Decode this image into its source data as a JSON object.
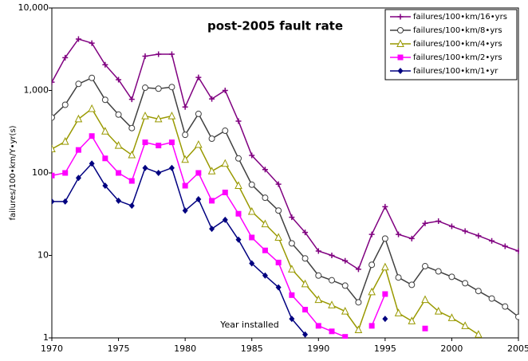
{
  "chart_data": {
    "type": "line",
    "title": "post-2005 fault rate",
    "y_label": "failures/100•km/Y•yr(s)",
    "annotation": "Year installed",
    "yscale": "log",
    "grid": false,
    "legend_position": "top-right",
    "x": [
      1970,
      1971,
      1972,
      1973,
      1974,
      1975,
      1976,
      1977,
      1978,
      1979,
      1980,
      1981,
      1982,
      1983,
      1984,
      1985,
      1986,
      1987,
      1988,
      1989,
      1990,
      1991,
      1992,
      1993,
      1994,
      1995,
      1996,
      1997,
      1998,
      1999,
      2000,
      2001,
      2002,
      2003,
      2004,
      2005
    ],
    "xlim": [
      1970,
      2005
    ],
    "xticks": [
      1970,
      1975,
      1980,
      1985,
      1990,
      1995,
      2000,
      2005
    ],
    "ylim": [
      1,
      10000
    ],
    "yticks": [
      1,
      10,
      100,
      {
        "value": 1000,
        "label": "1,000"
      },
      {
        "value": 10000,
        "label": "10,000"
      }
    ],
    "series": [
      {
        "name": "failures/100•km/16•yrs",
        "color": "#800080",
        "marker": "plus",
        "values": [
          1260,
          2500,
          4200,
          3750,
          2050,
          1350,
          780,
          2600,
          2750,
          2750,
          630,
          1440,
          790,
          1000,
          425,
          163,
          110,
          73,
          29,
          19,
          11.3,
          10,
          8.6,
          6.8,
          18,
          39,
          18,
          16,
          24.5,
          26,
          22.5,
          19.7,
          17.3,
          15,
          12.9,
          11.3
        ]
      },
      {
        "name": "failures/100•km/8•yrs",
        "color": "#404040",
        "marker": "circle",
        "values": [
          470,
          670,
          1200,
          1420,
          770,
          510,
          350,
          1080,
          1050,
          1100,
          290,
          520,
          260,
          325,
          150,
          72,
          50,
          35,
          14,
          9.2,
          5.7,
          5.0,
          4.3,
          2.7,
          7.7,
          16,
          5.4,
          4.4,
          7.4,
          6.4,
          5.5,
          4.6,
          3.7,
          3.0,
          2.4,
          1.8
        ]
      },
      {
        "name": "failures/100•km/4•yrs",
        "color": "#999900",
        "marker": "triangle",
        "values": [
          195,
          240,
          450,
          600,
          320,
          215,
          165,
          490,
          450,
          490,
          145,
          220,
          105,
          130,
          70,
          34,
          24,
          16.5,
          6.8,
          4.5,
          2.9,
          2.5,
          2.1,
          1.25,
          3.6,
          7.2,
          2.0,
          1.6,
          2.9,
          2.1,
          1.75,
          1.4,
          1.1,
          null,
          null,
          null
        ]
      },
      {
        "name": "failures/100•km/2•yrs",
        "color": "#ff00ff",
        "marker": "square",
        "values": [
          93,
          100,
          190,
          280,
          150,
          100,
          80,
          235,
          215,
          235,
          70,
          100,
          46,
          58,
          32,
          16.5,
          11.5,
          8.2,
          3.3,
          2.2,
          1.4,
          1.2,
          1.03,
          null,
          1.4,
          3.4,
          null,
          null,
          1.3,
          null,
          null,
          null,
          null,
          null,
          null,
          null
        ]
      },
      {
        "name": "failures/100•km/1•yr",
        "color": "#000080",
        "marker": "diamond",
        "values": [
          45,
          45,
          87,
          130,
          70,
          46,
          40,
          115,
          100,
          115,
          35,
          48,
          21,
          27,
          15.5,
          8,
          5.7,
          4.1,
          1.7,
          1.1,
          null,
          null,
          null,
          null,
          null,
          1.7,
          null,
          null,
          null,
          null,
          null,
          null,
          null,
          null,
          null,
          null
        ]
      }
    ]
  }
}
